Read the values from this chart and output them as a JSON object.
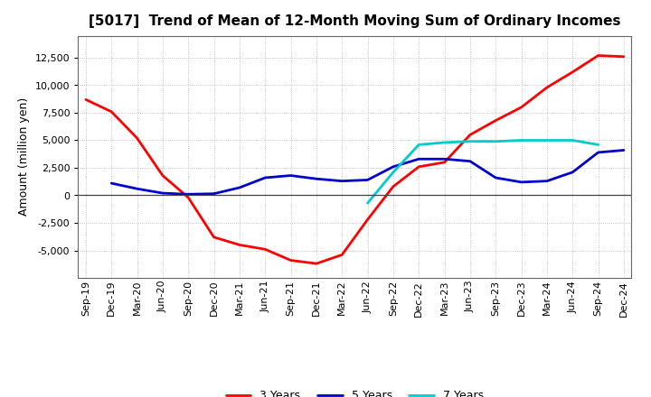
{
  "title": "[5017]  Trend of Mean of 12-Month Moving Sum of Ordinary Incomes",
  "ylabel": "Amount (million yen)",
  "x_labels": [
    "Sep-19",
    "Dec-19",
    "Mar-20",
    "Jun-20",
    "Sep-20",
    "Dec-20",
    "Mar-21",
    "Jun-21",
    "Sep-21",
    "Dec-21",
    "Mar-22",
    "Jun-22",
    "Sep-22",
    "Dec-22",
    "Mar-23",
    "Jun-23",
    "Sep-23",
    "Dec-23",
    "Mar-24",
    "Jun-24",
    "Sep-24",
    "Dec-24"
  ],
  "series": {
    "3 Years": {
      "color": "#FF0000",
      "data": [
        8700,
        7600,
        5200,
        1800,
        -200,
        -3800,
        -4500,
        -4900,
        -5900,
        -6200,
        -5400,
        -2200,
        800,
        2600,
        3000,
        5500,
        6800,
        8000,
        9800,
        11200,
        12700,
        12600
      ]
    },
    "5 Years": {
      "color": "#0000CD",
      "data": [
        null,
        1100,
        600,
        200,
        100,
        150,
        700,
        1600,
        1800,
        1500,
        1300,
        1400,
        2600,
        3300,
        3300,
        3100,
        1600,
        1200,
        1300,
        2100,
        3900,
        4100
      ]
    },
    "7 Years": {
      "color": "#00CCCC",
      "data": [
        null,
        null,
        null,
        null,
        null,
        null,
        null,
        null,
        null,
        null,
        null,
        -700,
        2100,
        4600,
        4800,
        4900,
        4900,
        5000,
        5000,
        5000,
        4600,
        null
      ]
    },
    "10 Years": {
      "color": "#008000",
      "data": [
        null,
        null,
        null,
        null,
        null,
        null,
        null,
        null,
        null,
        null,
        null,
        null,
        null,
        null,
        null,
        null,
        null,
        null,
        null,
        null,
        null,
        null
      ]
    }
  },
  "ylim": [
    -7500,
    14500
  ],
  "yticks": [
    -5000,
    -2500,
    0,
    2500,
    5000,
    7500,
    10000,
    12500
  ],
  "grid_color": "#AAAAAA",
  "background_color": "#FFFFFF",
  "title_fontsize": 11,
  "axis_label_fontsize": 9,
  "tick_fontsize": 8,
  "legend_fontsize": 9,
  "linewidth": 2.0
}
